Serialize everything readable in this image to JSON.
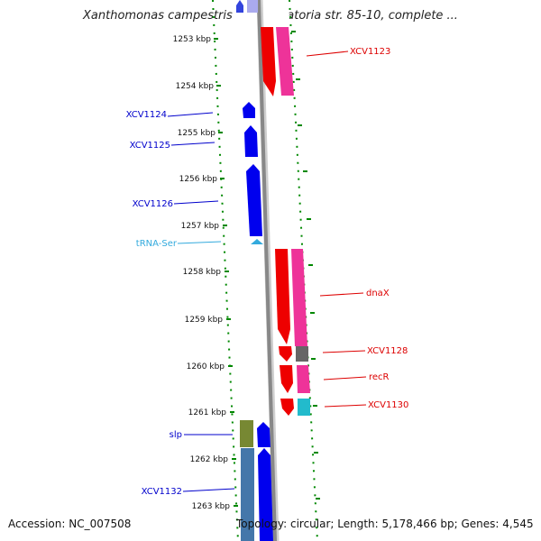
{
  "title": "Xanthomonas campestris pv. vesicatoria str. 85-10, complete ...",
  "ticks": [
    "1253 kbp",
    "1254 kbp",
    "1255 kbp",
    "1256 kbp",
    "1257 kbp",
    "1258 kbp",
    "1259 kbp",
    "1260 kbp",
    "1261 kbp",
    "1262 kbp",
    "1263 kbp"
  ],
  "left_labels": [
    {
      "text": "XCV1124",
      "color": "#0000cc"
    },
    {
      "text": "XCV1125",
      "color": "#0000cc"
    },
    {
      "text": "XCV1126",
      "color": "#0000cc"
    },
    {
      "text": "tRNA-Ser",
      "color": "#33aadd"
    },
    {
      "text": "slp",
      "color": "#0000cc"
    },
    {
      "text": "XCV1132",
      "color": "#0000cc"
    }
  ],
  "right_labels": [
    {
      "text": "XCV1123",
      "color": "#dd0000"
    },
    {
      "text": "dnaX",
      "color": "#dd0000"
    },
    {
      "text": "XCV1128",
      "color": "#dd0000"
    },
    {
      "text": "recR",
      "color": "#dd0000"
    },
    {
      "text": "XCV1130",
      "color": "#dd0000"
    }
  ],
  "colors": {
    "forward_cds": "#0000ee",
    "reverse_cds": "#ee0000",
    "trna": "#33aadd",
    "cog_pink": "#ee3399",
    "cog_gray": "#666666",
    "cog_cyan": "#22bbcc",
    "cog_olive": "#778833",
    "cog_steel": "#4477aa",
    "tick_green": "#008800",
    "backbone": "#888888"
  },
  "footer": {
    "accession": "Accession: NC_007508",
    "topology": "Topology: circular; Length: 5,178,466 bp; Genes: 4,545"
  }
}
